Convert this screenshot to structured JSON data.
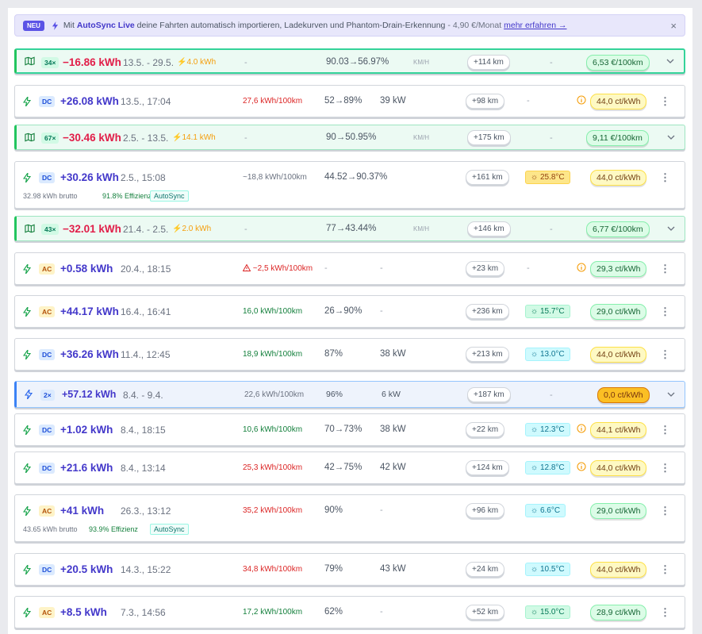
{
  "banner": {
    "badge": "NEU",
    "text_prefix": "Mit",
    "product": "AutoSync Live",
    "text_rest": "deine Fahrten automatisch importieren, Ladekurven und Phantom-Drain-Erkennung",
    "price": "- 4,90 €/Monat",
    "link": "mehr erfahren →",
    "close": "×"
  },
  "rows": {
    "r0": {
      "count": "34×",
      "kwh": "−16.86 kWh",
      "date": "13.5. - 29.5.",
      "boost": "4.0 kWh",
      "eff": "-",
      "soc": "90.03→56.97%",
      "unit": "KM/H",
      "km": "+114 km",
      "temp": "-",
      "price": "6,53 €/100km"
    },
    "r1": {
      "type": "DC",
      "kwh": "+26.08 kWh",
      "date": "13.5., 17:04",
      "eff": "27,6 kWh/100km",
      "soc": "52→89%",
      "power": "39 kW",
      "km": "+98 km",
      "temp": "-",
      "price": "44,0 ct/kWh"
    },
    "r2": {
      "count": "67×",
      "kwh": "−30.46 kWh",
      "date": "2.5. - 13.5.",
      "boost": "14.1 kWh",
      "eff": "-",
      "soc": "90→50.95%",
      "unit": "KM/H",
      "km": "+175 km",
      "temp": "-",
      "price": "9,11 €/100km"
    },
    "r3": {
      "type": "DC",
      "kwh": "+30.26 kWh",
      "date": "2.5., 15:08",
      "eff": "~18,8 kWh/100km",
      "soc": "44.52→90.37%",
      "km": "+161 km",
      "temp": "25.8°C",
      "price": "44,0 ct/kWh",
      "brutto": "32.98 kWh brutto",
      "effizienz": "91.8% Effizienz",
      "autosync": "AutoSync"
    },
    "r4": {
      "count": "43×",
      "kwh": "−32.01 kWh",
      "date": "21.4. - 2.5.",
      "boost": "2.0 kWh",
      "eff": "-",
      "soc": "77→43.44%",
      "unit": "KM/H",
      "km": "+146 km",
      "temp": "-",
      "price": "6,77 €/100km"
    },
    "r5": {
      "type": "AC",
      "kwh": "+0.58 kWh",
      "date": "20.4., 18:15",
      "eff": "~2,5 kWh/100km",
      "soc": "-",
      "power": "-",
      "km": "+23 km",
      "temp": "-",
      "price": "29,3 ct/kWh"
    },
    "r6": {
      "type": "AC",
      "kwh": "+44.17 kWh",
      "date": "16.4., 16:41",
      "eff": "16,0 kWh/100km",
      "soc": "26→90%",
      "power": "-",
      "km": "+236 km",
      "temp": "15.7°C",
      "price": "29,0 ct/kWh"
    },
    "r7": {
      "type": "DC",
      "kwh": "+36.26 kWh",
      "date": "11.4., 12:45",
      "eff": "18,9 kWh/100km",
      "soc": "87%",
      "power": "38 kW",
      "km": "+213 km",
      "temp": "13.0°C",
      "price": "44,0 ct/kWh"
    },
    "r8": {
      "count": "2×",
      "kwh": "+57.12 kWh",
      "date": "8.4. - 9.4.",
      "eff": "22,6 kWh/100km",
      "soc": "96%",
      "power": "6 kW",
      "km": "+187 km",
      "temp": "-",
      "price": "0,0 ct/kWh"
    },
    "r9": {
      "type": "DC",
      "kwh": "+1.02 kWh",
      "date": "8.4., 18:15",
      "eff": "10,6 kWh/100km",
      "soc": "70→73%",
      "power": "38 kW",
      "km": "+22 km",
      "temp": "12.3°C",
      "price": "44,1 ct/kWh"
    },
    "r10": {
      "type": "DC",
      "kwh": "+21.6 kWh",
      "date": "8.4., 13:14",
      "eff": "25,3 kWh/100km",
      "soc": "42→75%",
      "power": "42 kW",
      "km": "+124 km",
      "temp": "12.8°C",
      "price": "44,0 ct/kWh"
    },
    "r11": {
      "type": "AC",
      "kwh": "+41 kWh",
      "date": "26.3., 13:12",
      "eff": "35,2 kWh/100km",
      "soc": "90%",
      "power": "-",
      "km": "+96 km",
      "temp": "6.6°C",
      "price": "29,0 ct/kWh",
      "brutto": "43.65 kWh brutto",
      "effizienz": "93.9% Effizienz",
      "autosync": "AutoSync"
    },
    "r12": {
      "type": "DC",
      "kwh": "+20.5 kWh",
      "date": "14.3., 15:22",
      "eff": "34,8 kWh/100km",
      "soc": "79%",
      "power": "43 kW",
      "km": "+24 km",
      "temp": "10.5°C",
      "price": "44,0 ct/kWh"
    },
    "r13": {
      "type": "AC",
      "kwh": "+8.5 kWh",
      "date": "7.3., 14:56",
      "eff": "17,2 kWh/100km",
      "soc": "62%",
      "power": "-",
      "km": "+52 km",
      "temp": "15.0°C",
      "price": "28,9 ct/kWh"
    }
  },
  "icons": {
    "bolt": "bolt-icon",
    "map": "map-icon",
    "info": "info-icon",
    "warning": "warning-icon",
    "menu": "more-vertical-icon",
    "chevron": "chevron-down-icon",
    "sun": "sun-icon"
  },
  "colors": {
    "accent": "#4338ca",
    "negative": "#e11d48",
    "trip_border": "#22c55e",
    "group_border": "#3b82f6"
  }
}
